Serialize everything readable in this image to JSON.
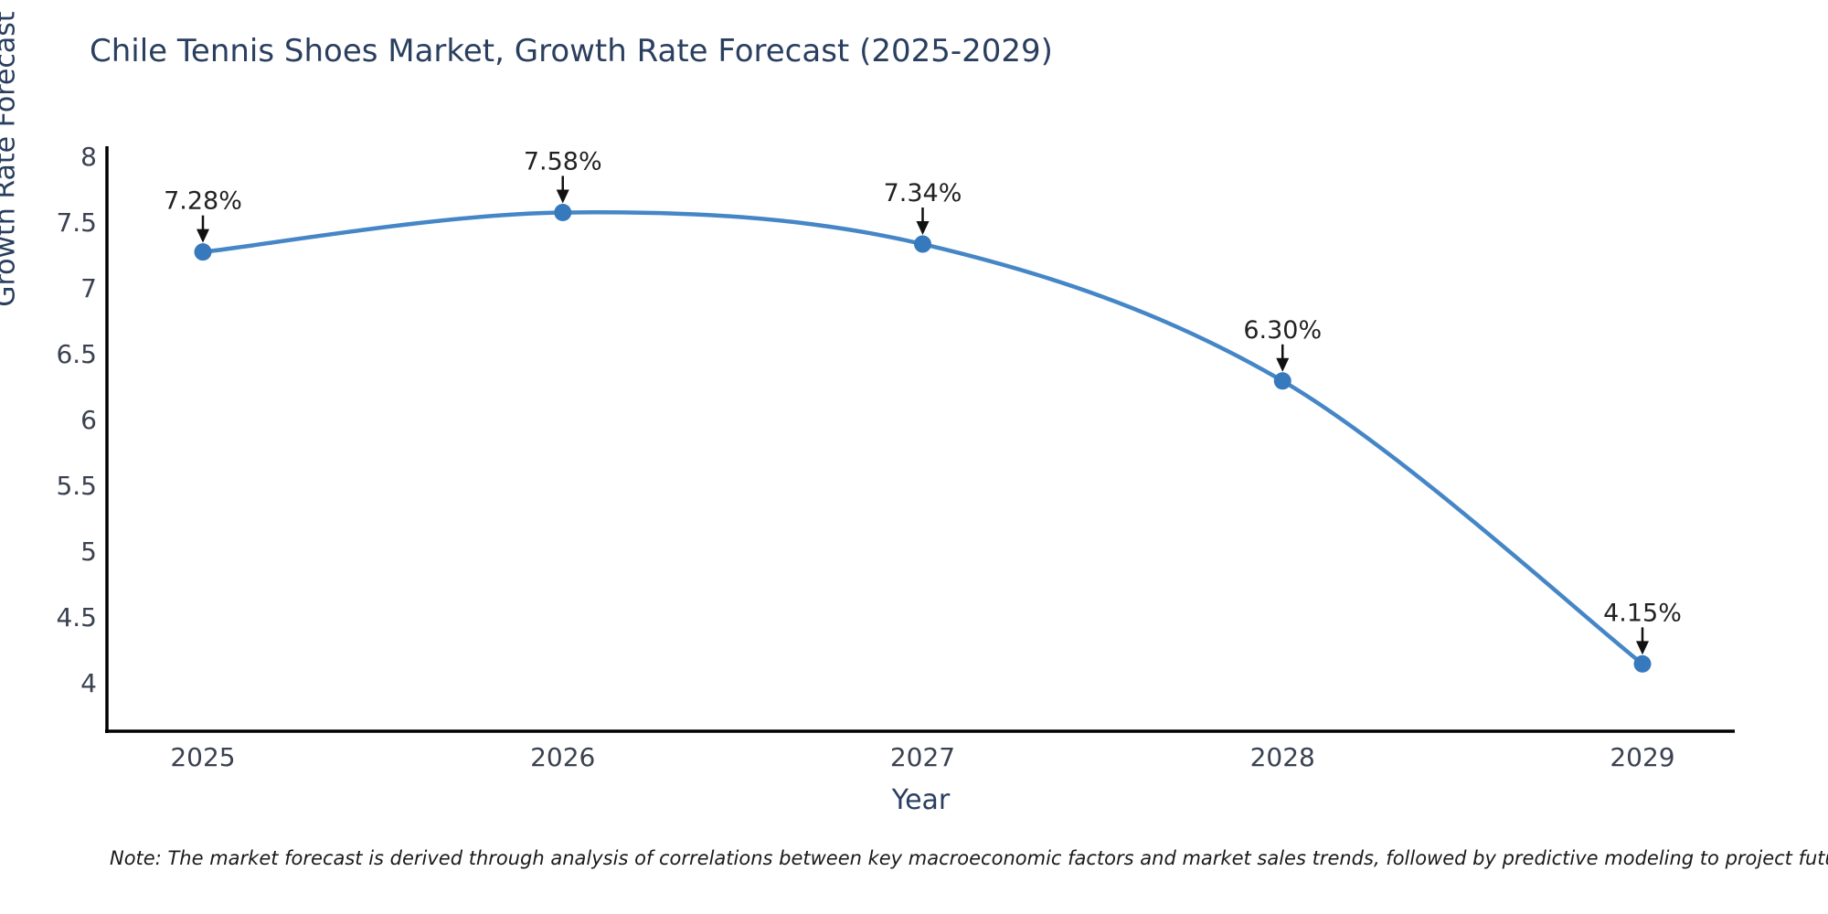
{
  "chart_data": {
    "type": "line",
    "title": "Chile Tennis Shoes Market, Growth Rate Forecast (2025-2029)",
    "xlabel": "Year",
    "ylabel": "Growth Rate Forecast",
    "categories": [
      "2025",
      "2026",
      "2027",
      "2028",
      "2029"
    ],
    "values": [
      7.28,
      7.58,
      7.34,
      6.3,
      4.15
    ],
    "point_labels": [
      "7.28%",
      "7.58%",
      "7.34%",
      "6.30%",
      "4.15%"
    ],
    "ytick_labels": [
      "8",
      "7.5",
      "7",
      "6.5",
      "6",
      "5.5",
      "5",
      "4.5",
      "4"
    ],
    "ytick_values": [
      8,
      7.5,
      7,
      6.5,
      6,
      5.5,
      5,
      4.5,
      4
    ],
    "ylim": [
      3.64,
      8.08
    ],
    "grid": false,
    "legend": "none",
    "line_shape": "spline",
    "colors": {
      "line": "#4586c7",
      "marker": "#3679bc",
      "axis": "#000000",
      "annotation_arrow": "#111111",
      "title_text": "#2a3f5f",
      "tick_text": "#3a4150",
      "annotation_text": "#222222",
      "note_text": "#1a1a1a",
      "background": "#ffffff"
    },
    "note": "Note: The market forecast is derived through analysis of correlations between key macroeconomic factors and market sales trends, followed by predictive modeling to project future sales"
  }
}
